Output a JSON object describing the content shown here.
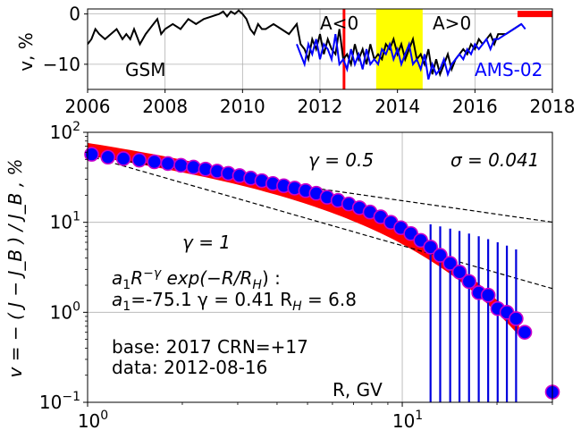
{
  "chart_data": [
    {
      "type": "line",
      "xlim": [
        2006,
        2018
      ],
      "ylim": [
        -15,
        1
      ],
      "log": false,
      "ylabel": "v, %",
      "x_ticks": [
        2006,
        2008,
        2010,
        2012,
        2014,
        2016,
        2018
      ],
      "y_ticks": [
        0,
        -10
      ],
      "grid": true,
      "annotations": {
        "gsm": "GSM",
        "ams": "AMS-02",
        "aneg": "A<0",
        "apos": "A>0"
      },
      "colors": {
        "gsm": "#000000",
        "ams": "#0000ff",
        "date_line": "#ff0000",
        "period": "#ffff00",
        "bar": "#ff0000"
      },
      "marked_date": 2012.62,
      "period": [
        2013.45,
        2014.65
      ],
      "bar_range": [
        2017.1,
        2018
      ],
      "bar_y": 0,
      "series": [
        {
          "name": "GSM",
          "x": [
            2006.0,
            2006.1,
            2006.2,
            2006.3,
            2006.45,
            2006.6,
            2006.75,
            2006.9,
            2007.0,
            2007.1,
            2007.2,
            2007.35,
            2007.5,
            2007.6,
            2007.8,
            2007.9,
            2008.0,
            2008.2,
            2008.4,
            2008.6,
            2008.8,
            2009.0,
            2009.2,
            2009.4,
            2009.5,
            2009.6,
            2009.7,
            2009.8,
            2009.9,
            2010.0,
            2010.1,
            2010.2,
            2010.3,
            2010.4,
            2010.5,
            2010.6,
            2010.8,
            2011.0,
            2011.2,
            2011.4,
            2011.5,
            2011.6,
            2011.7,
            2011.8,
            2011.9,
            2012.0,
            2012.1,
            2012.2,
            2012.3,
            2012.4,
            2012.5,
            2012.6,
            2012.7,
            2012.8,
            2012.9,
            2013.0,
            2013.1,
            2013.2,
            2013.3,
            2013.4,
            2013.5,
            2013.6,
            2013.7,
            2013.8,
            2013.9,
            2014.0,
            2014.1,
            2014.2,
            2014.3,
            2014.4,
            2014.5,
            2014.6,
            2014.7,
            2014.8,
            2014.9,
            2015.0,
            2015.1,
            2015.2,
            2015.3,
            2015.4,
            2015.5,
            2015.6,
            2015.7,
            2015.8,
            2015.9,
            2016.0,
            2016.1,
            2016.2,
            2016.3,
            2016.4,
            2016.5,
            2016.6,
            2016.8,
            2017.0,
            2017.2
          ],
          "y": [
            -6,
            -5,
            -3,
            -4,
            -5,
            -4,
            -3,
            -5,
            -4,
            -5,
            -3,
            -6,
            -4,
            -3,
            -1,
            -4,
            -3,
            -2,
            -3,
            -1,
            -2,
            -1,
            -0.5,
            0,
            0.5,
            -0.5,
            0.5,
            0,
            0.7,
            0,
            -1,
            -3,
            -4,
            -2,
            -3,
            -3,
            -2,
            -3,
            -4,
            -2,
            -6,
            -7,
            -9,
            -5,
            -7,
            -4,
            -8,
            -5,
            -7,
            -8,
            -3,
            -9,
            -8,
            -10,
            -6,
            -9,
            -7,
            -10,
            -6,
            -9,
            -8,
            -9,
            -6,
            -7,
            -5,
            -8,
            -6,
            -9,
            -7,
            -5,
            -9,
            -8,
            -10,
            -7,
            -12,
            -9,
            -12,
            -10,
            -8,
            -11,
            -9,
            -8,
            -7,
            -8,
            -6,
            -7,
            -5,
            -6,
            -5,
            -4,
            -6,
            -4,
            -4,
            -3,
            -2
          ]
        },
        {
          "name": "AMS-02",
          "x": [
            2011.4,
            2011.5,
            2011.6,
            2011.7,
            2011.8,
            2011.9,
            2012.0,
            2012.1,
            2012.2,
            2012.3,
            2012.4,
            2012.5,
            2012.6,
            2012.7,
            2012.8,
            2012.9,
            2013.0,
            2013.1,
            2013.2,
            2013.3,
            2013.4,
            2013.5,
            2013.6,
            2013.7,
            2013.8,
            2013.9,
            2014.0,
            2014.1,
            2014.2,
            2014.3,
            2014.4,
            2014.5,
            2014.6,
            2014.7,
            2014.8,
            2014.9,
            2015.0,
            2015.1,
            2015.2,
            2015.3,
            2015.4,
            2015.5,
            2015.6,
            2015.7,
            2015.8,
            2015.9,
            2016.0,
            2016.1,
            2016.2,
            2016.3,
            2016.4,
            2016.5,
            2016.6,
            2016.8,
            2017.0,
            2017.2,
            2017.3
          ],
          "y": [
            -6,
            -8,
            -10,
            -6,
            -8,
            -5,
            -9,
            -6,
            -7,
            -9,
            -4,
            -10,
            -9,
            -11,
            -7,
            -10,
            -8,
            -11,
            -7,
            -10,
            -9,
            -10,
            -7,
            -8,
            -6,
            -9,
            -7,
            -10,
            -8,
            -6,
            -10,
            -9,
            -11,
            -8,
            -13,
            -10,
            -12,
            -11,
            -9,
            -12,
            -10,
            -9,
            -8,
            -9,
            -7,
            -8,
            -6,
            -7,
            -6,
            -5,
            -7,
            -5,
            -5,
            -4,
            -3,
            -2,
            -3
          ]
        }
      ]
    },
    {
      "type": "scatter",
      "xscale": "log",
      "yscale": "log",
      "xlim": [
        1,
        30
      ],
      "ylim": [
        0.1,
        100
      ],
      "xlabel": "R, GV",
      "ylabel": "v = − ( J − J_B ) / J_B , %",
      "x_tick_labels": [
        {
          "value": 1,
          "base": "10",
          "exp": "0"
        },
        {
          "value": 10,
          "base": "10",
          "exp": "1"
        }
      ],
      "y_tick_labels": [
        {
          "value": 0.1,
          "base": "10",
          "exp": "−1"
        },
        {
          "value": 1,
          "base": "10",
          "exp": "0"
        },
        {
          "value": 10,
          "base": "10",
          "exp": "1"
        },
        {
          "value": 100,
          "base": "10",
          "exp": "2"
        }
      ],
      "grid": true,
      "colors": {
        "points": "#0000ff",
        "point_edge": "#cc00cc",
        "fit": "#ff0000",
        "errorbar": "#0000dd"
      },
      "points": {
        "x": [
          1.03,
          1.16,
          1.3,
          1.46,
          1.63,
          1.8,
          1.98,
          2.17,
          2.37,
          2.58,
          2.8,
          3.04,
          3.3,
          3.58,
          3.88,
          4.2,
          4.55,
          4.93,
          5.33,
          5.77,
          6.25,
          6.76,
          7.31,
          7.9,
          8.54,
          9.2,
          9.9,
          10.65,
          11.45,
          12.3,
          13.2,
          14.2,
          15.2,
          16.3,
          17.5,
          18.75,
          20.1,
          21.5,
          23.0,
          24.5,
          30.0
        ],
        "y": [
          57,
          53,
          51,
          49,
          47,
          45,
          43,
          41,
          39,
          37,
          35,
          33,
          31,
          29,
          27,
          25.5,
          24,
          22.5,
          21,
          19,
          17.5,
          16,
          14.5,
          13,
          11.5,
          10,
          8.7,
          7.5,
          6.3,
          5.3,
          4.3,
          3.5,
          2.8,
          2.2,
          1.65,
          1.55,
          1.1,
          1.0,
          0.85,
          0.6,
          0.13
        ],
        "err_low": [
          null,
          null,
          null,
          null,
          null,
          null,
          null,
          null,
          null,
          null,
          null,
          null,
          null,
          null,
          null,
          null,
          null,
          null,
          null,
          null,
          null,
          null,
          null,
          null,
          null,
          null,
          null,
          null,
          null,
          0.1,
          0.1,
          0.1,
          0.1,
          0.1,
          0.1,
          0.1,
          0.1,
          0.1,
          0.1,
          null,
          null
        ],
        "err_high": [
          null,
          null,
          null,
          null,
          null,
          null,
          null,
          null,
          null,
          null,
          null,
          null,
          null,
          null,
          null,
          null,
          null,
          null,
          null,
          null,
          null,
          null,
          null,
          null,
          null,
          null,
          null,
          null,
          9.0,
          9.5,
          9.0,
          8.5,
          8.0,
          7.5,
          7.0,
          6.5,
          6.0,
          5.5,
          5.0,
          null,
          null
        ]
      },
      "fit": {
        "a1": -75.1,
        "gamma": 0.41,
        "RH": 6.8,
        "band_from": 1,
        "band_to": 23.5,
        "band_half_width_decades": 0.07
      },
      "ref_lines": [
        {
          "gamma": 0.5,
          "y_at_1": 55,
          "label": "γ = 0.5"
        },
        {
          "gamma": 1,
          "y_at_1": 55,
          "label": "γ = 1"
        }
      ],
      "annotations": {
        "sigma": "σ = 0.041",
        "formula_line1_base": "a",
        "formula_line1_sub": "1",
        "formula_line1_r": "R",
        "formula_line1_sup": "−γ",
        "formula_line1_rest": " exp(−R/R",
        "formula_line1_h": "H",
        "formula_line1_end": ") :",
        "formula_line2_a": "a",
        "formula_line2_a_sub": "1",
        "formula_line2_a_val": "=-75.1  γ = 0.41  R",
        "formula_line2_h": "H",
        "formula_line2_end": " =  6.8",
        "base_text": "base: 2017   CRN=+17",
        "data_text": "data: 2012-08-16"
      }
    }
  ]
}
